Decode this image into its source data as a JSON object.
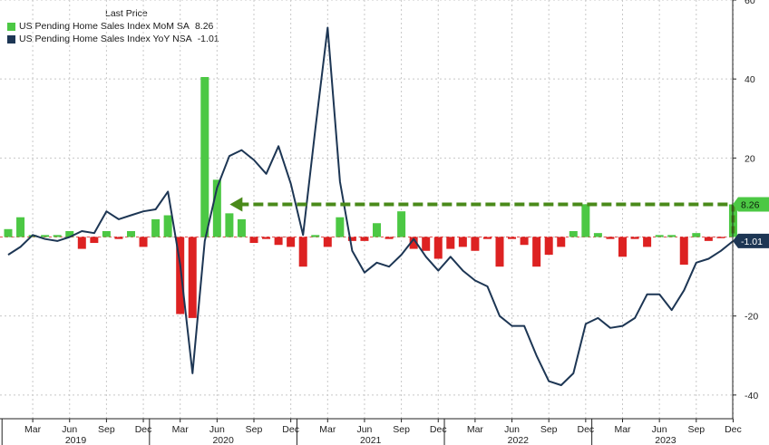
{
  "legend": {
    "header": "Last Price",
    "entries": [
      {
        "label": "US Pending Home Sales Index MoM SA",
        "value": "8.26",
        "color": "#4cc844"
      },
      {
        "label": "US Pending Home Sales Index YoY NSA",
        "value": "-1.01",
        "color": "#1d3654"
      }
    ]
  },
  "colors": {
    "bar_positive": "#4cc844",
    "bar_negative": "#dd2222",
    "line": "#1d3654",
    "arrow": "#4a8a1a",
    "grid": "#c8c8c8",
    "zero_line": "#e05050"
  },
  "chart_data": {
    "type": "bar+line",
    "ylim": [
      -46,
      60
    ],
    "yticks": [
      60,
      40,
      20,
      -20,
      -40
    ],
    "grid": true,
    "x": [
      "2019-01",
      "2019-02",
      "2019-03",
      "2019-04",
      "2019-05",
      "2019-06",
      "2019-07",
      "2019-08",
      "2019-09",
      "2019-10",
      "2019-11",
      "2019-12",
      "2020-01",
      "2020-02",
      "2020-03",
      "2020-04",
      "2020-05",
      "2020-06",
      "2020-07",
      "2020-08",
      "2020-09",
      "2020-10",
      "2020-11",
      "2020-12",
      "2021-01",
      "2021-02",
      "2021-03",
      "2021-04",
      "2021-05",
      "2021-06",
      "2021-07",
      "2021-08",
      "2021-09",
      "2021-10",
      "2021-11",
      "2021-12",
      "2022-01",
      "2022-02",
      "2022-03",
      "2022-04",
      "2022-05",
      "2022-06",
      "2022-07",
      "2022-08",
      "2022-09",
      "2022-10",
      "2022-11",
      "2022-12",
      "2023-01",
      "2023-02",
      "2023-03",
      "2023-04",
      "2023-05",
      "2023-06",
      "2023-07",
      "2023-08",
      "2023-09",
      "2023-10",
      "2023-11",
      "2023-12"
    ],
    "month_tick_labels": [
      "Mar",
      "Jun",
      "Sep",
      "Dec",
      "Mar",
      "Jun",
      "Sep",
      "Dec",
      "Mar",
      "Jun",
      "Sep",
      "Dec",
      "Mar",
      "Jun",
      "Sep",
      "Dec",
      "Mar",
      "Jun",
      "Sep",
      "Dec"
    ],
    "year_labels": [
      "2019",
      "2020",
      "2021",
      "2022",
      "2023"
    ],
    "series": [
      {
        "name": "US Pending Home Sales Index MoM SA",
        "type": "bar",
        "values": [
          2.0,
          5.0,
          0.5,
          0.5,
          0.5,
          1.5,
          -3.0,
          -1.5,
          1.5,
          -0.5,
          1.5,
          -2.5,
          4.5,
          5.5,
          -19.5,
          -20.5,
          40.5,
          14.5,
          6.0,
          4.5,
          -1.5,
          -0.5,
          -2.0,
          -2.5,
          -7.5,
          0.5,
          -2.5,
          5.0,
          -1.0,
          -1.0,
          3.5,
          -0.5,
          6.5,
          -3.0,
          -3.5,
          -5.5,
          -3.0,
          -2.5,
          -3.5,
          -0.5,
          -7.5,
          -0.5,
          -2.0,
          -7.5,
          -4.5,
          -2.5,
          1.5,
          8.3,
          1.0,
          -0.5,
          -5.0,
          -0.5,
          -2.5,
          0.5,
          0.5,
          -7.0,
          1.0,
          -1.0,
          -0.3,
          8.26
        ]
      },
      {
        "name": "US Pending Home Sales Index YoY NSA",
        "type": "line",
        "values": [
          -4.5,
          -2.5,
          0.5,
          -0.5,
          -1.0,
          0.0,
          1.5,
          1.0,
          6.5,
          4.5,
          5.5,
          6.5,
          7.0,
          11.5,
          -7.0,
          -34.5,
          -1.0,
          12.5,
          20.5,
          22.0,
          19.5,
          16.0,
          23.0,
          13.5,
          0.5,
          27.5,
          53.0,
          14.0,
          -3.5,
          -9.0,
          -6.5,
          -7.5,
          -4.5,
          -0.5,
          -5.0,
          -8.5,
          -5.0,
          -8.5,
          -11.0,
          -12.5,
          -20.0,
          -22.5,
          -22.5,
          -30.0,
          -36.5,
          -37.5,
          -34.5,
          -22.0,
          -20.5,
          -23.0,
          -22.5,
          -20.5,
          -14.5,
          -14.5,
          -18.5,
          -13.5,
          -6.5,
          -5.5,
          -3.5,
          -1.01
        ]
      }
    ],
    "last_value_labels": [
      "8.26",
      "-1.01"
    ]
  }
}
